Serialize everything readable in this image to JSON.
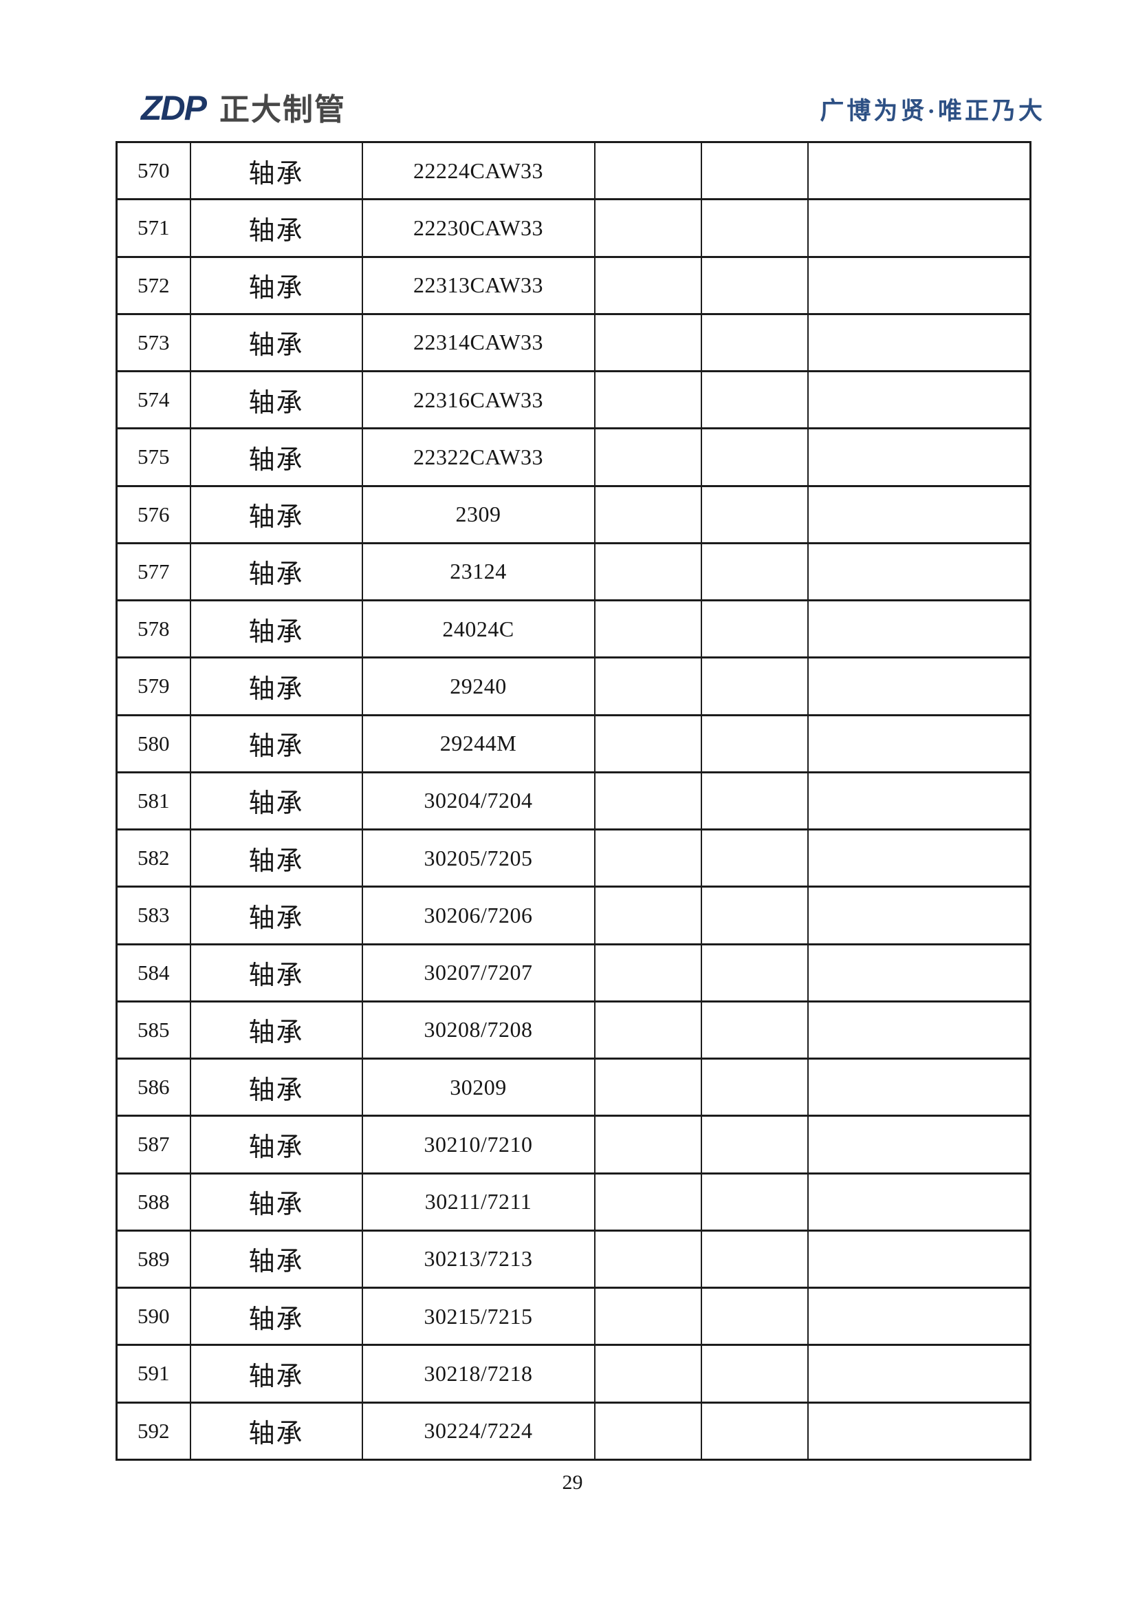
{
  "header": {
    "logo_text": "ZDP",
    "company_name": "正大制管",
    "slogan": "广博为贤·唯正乃大",
    "logo_color": "#1d3767",
    "company_color": "#474747",
    "slogan_color": "#2d5084"
  },
  "table": {
    "border_color": "#1c1c1c",
    "columns_visible_headers": [],
    "column_count": 6,
    "rows": [
      [
        "570",
        "轴承",
        "22224CAW33",
        "",
        "",
        ""
      ],
      [
        "571",
        "轴承",
        "22230CAW33",
        "",
        "",
        ""
      ],
      [
        "572",
        "轴承",
        "22313CAW33",
        "",
        "",
        ""
      ],
      [
        "573",
        "轴承",
        "22314CAW33",
        "",
        "",
        ""
      ],
      [
        "574",
        "轴承",
        "22316CAW33",
        "",
        "",
        ""
      ],
      [
        "575",
        "轴承",
        "22322CAW33",
        "",
        "",
        ""
      ],
      [
        "576",
        "轴承",
        "2309",
        "",
        "",
        ""
      ],
      [
        "577",
        "轴承",
        "23124",
        "",
        "",
        ""
      ],
      [
        "578",
        "轴承",
        "24024C",
        "",
        "",
        ""
      ],
      [
        "579",
        "轴承",
        "29240",
        "",
        "",
        ""
      ],
      [
        "580",
        "轴承",
        "29244M",
        "",
        "",
        ""
      ],
      [
        "581",
        "轴承",
        "30204/7204",
        "",
        "",
        ""
      ],
      [
        "582",
        "轴承",
        "30205/7205",
        "",
        "",
        ""
      ],
      [
        "583",
        "轴承",
        "30206/7206",
        "",
        "",
        ""
      ],
      [
        "584",
        "轴承",
        "30207/7207",
        "",
        "",
        ""
      ],
      [
        "585",
        "轴承",
        "30208/7208",
        "",
        "",
        ""
      ],
      [
        "586",
        "轴承",
        "30209",
        "",
        "",
        ""
      ],
      [
        "587",
        "轴承",
        "30210/7210",
        "",
        "",
        ""
      ],
      [
        "588",
        "轴承",
        "30211/7211",
        "",
        "",
        ""
      ],
      [
        "589",
        "轴承",
        "30213/7213",
        "",
        "",
        ""
      ],
      [
        "590",
        "轴承",
        "30215/7215",
        "",
        "",
        ""
      ],
      [
        "591",
        "轴承",
        "30218/7218",
        "",
        "",
        ""
      ],
      [
        "592",
        "轴承",
        "30224/7224",
        "",
        "",
        ""
      ]
    ]
  },
  "footer": {
    "page_number": "29"
  }
}
